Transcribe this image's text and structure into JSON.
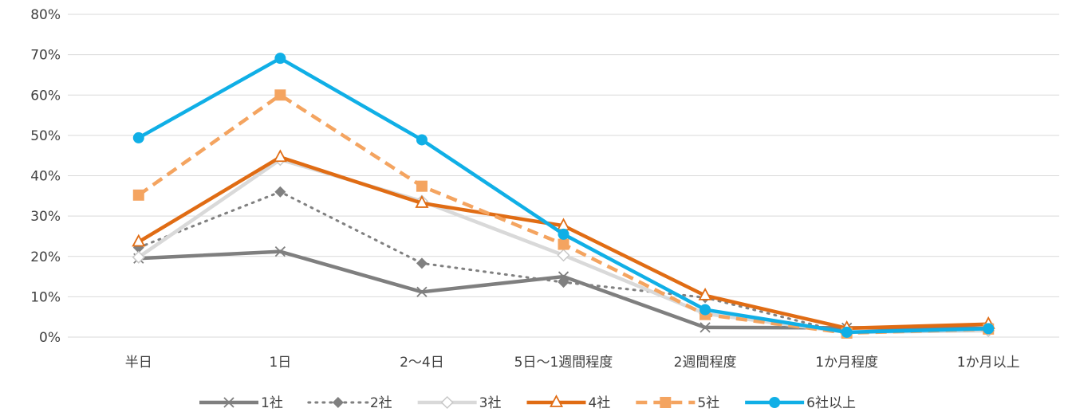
{
  "chart_data": {
    "type": "line",
    "categories": [
      "半日",
      "1日",
      "2〜4日",
      "5日〜1週間程度",
      "2週間程度",
      "1か月程度",
      "1か月以上"
    ],
    "ylim": [
      0,
      80
    ],
    "yticks": [
      "0%",
      "10%",
      "20%",
      "30%",
      "40%",
      "50%",
      "60%",
      "70%",
      "80%"
    ],
    "grid": true,
    "legend_position": "bottom",
    "series": [
      {
        "name": "1社",
        "values": [
          19.5,
          21.2,
          11.2,
          15.0,
          2.4,
          2.3,
          2.2
        ],
        "color": "#7f7f7f",
        "dash": "solid",
        "marker": "x"
      },
      {
        "name": "2社",
        "values": [
          22.2,
          36.0,
          18.3,
          13.6,
          9.8,
          1.0,
          2.0
        ],
        "color": "#808080",
        "dash": "dotted",
        "marker": "diamond"
      },
      {
        "name": "3社",
        "values": [
          19.8,
          44.0,
          33.7,
          20.3,
          5.8,
          1.2,
          1.6
        ],
        "color": "#d9d9d9",
        "dash": "solid",
        "marker": "diamond-open"
      },
      {
        "name": "4社",
        "values": [
          23.6,
          44.6,
          33.2,
          27.6,
          10.3,
          2.2,
          3.2
        ],
        "color": "#e06c14",
        "dash": "solid",
        "marker": "triangle-open"
      },
      {
        "name": "5社",
        "values": [
          35.2,
          60.0,
          37.4,
          23.0,
          5.6,
          1.0,
          2.0
        ],
        "color": "#f4a460",
        "dash": "dashed",
        "marker": "square"
      },
      {
        "name": "6社以上",
        "values": [
          49.4,
          69.1,
          48.9,
          25.5,
          6.8,
          1.2,
          2.1
        ],
        "color": "#10afe6",
        "dash": "solid",
        "marker": "circle"
      }
    ]
  }
}
